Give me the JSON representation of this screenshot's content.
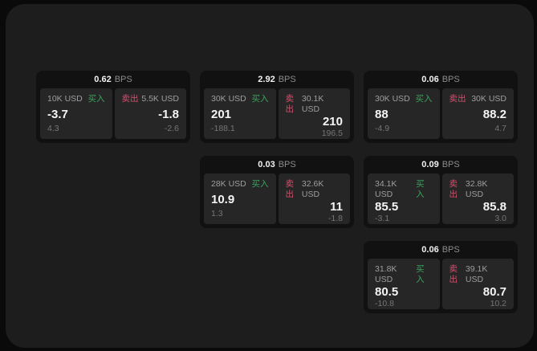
{
  "labels": {
    "bps_unit": "BPS",
    "buy": "买入",
    "sell": "卖出"
  },
  "colors": {
    "page_bg": "#0a0a0a",
    "window_bg": "#1d1d1d",
    "card_bg": "#111111",
    "panel_bg": "#262626",
    "buy_green": "#3ba35e",
    "sell_red": "#d4506e"
  },
  "cards": [
    {
      "bps": "0.62",
      "buy": {
        "size": "10K USD",
        "price": "-3.7",
        "sub": "4.3"
      },
      "sell": {
        "size": "5.5K USD",
        "price": "-1.8",
        "sub": "-2.6"
      }
    },
    {
      "bps": "2.92",
      "buy": {
        "size": "30K USD",
        "price": "201",
        "sub": "-188.1"
      },
      "sell": {
        "size": "30.1K USD",
        "price": "210",
        "sub": "196.5"
      }
    },
    {
      "bps": "0.06",
      "buy": {
        "size": "30K USD",
        "price": "88",
        "sub": "-4.9"
      },
      "sell": {
        "size": "30K USD",
        "price": "88.2",
        "sub": "4.7"
      }
    },
    {
      "bps": "0.03",
      "buy": {
        "size": "28K USD",
        "price": "10.9",
        "sub": "1.3"
      },
      "sell": {
        "size": "32.6K USD",
        "price": "11",
        "sub": "-1.8"
      }
    },
    {
      "bps": "0.09",
      "buy": {
        "size": "34.1K USD",
        "price": "85.5",
        "sub": "-3.1"
      },
      "sell": {
        "size": "32.8K USD",
        "price": "85.8",
        "sub": "3.0"
      }
    },
    {
      "bps": "0.06",
      "buy": {
        "size": "31.8K USD",
        "price": "80.5",
        "sub": "-10.8"
      },
      "sell": {
        "size": "39.1K USD",
        "price": "80.7",
        "sub": "10.2"
      }
    }
  ]
}
